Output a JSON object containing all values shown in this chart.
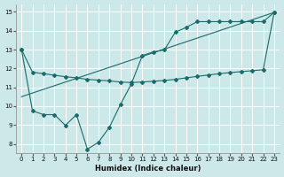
{
  "xlabel": "Humidex (Indice chaleur)",
  "background_color": "#cce8e8",
  "grid_color": "#aad4d4",
  "line_color": "#1a6b6b",
  "xlim": [
    -0.5,
    23.5
  ],
  "ylim": [
    7.5,
    15.4
  ],
  "xticks": [
    0,
    1,
    2,
    3,
    4,
    5,
    6,
    7,
    8,
    9,
    10,
    11,
    12,
    13,
    14,
    15,
    16,
    17,
    18,
    19,
    20,
    21,
    22,
    23
  ],
  "yticks": [
    8,
    9,
    10,
    11,
    12,
    13,
    14,
    15
  ],
  "line1_x": [
    0,
    1,
    2,
    3,
    4,
    5,
    6,
    7,
    8,
    9,
    10,
    11,
    12,
    13,
    14,
    15,
    16,
    17,
    18,
    19,
    20,
    21,
    22,
    23
  ],
  "line1_y": [
    13.0,
    11.8,
    11.72,
    11.64,
    11.56,
    11.5,
    11.42,
    11.38,
    11.34,
    11.28,
    11.25,
    11.28,
    11.32,
    11.36,
    11.42,
    11.5,
    11.58,
    11.65,
    11.72,
    11.78,
    11.83,
    11.88,
    11.93,
    14.97
  ],
  "line2_x": [
    0,
    1,
    2,
    3,
    4,
    5,
    6,
    7,
    8,
    9,
    10,
    11,
    12,
    13,
    14,
    15,
    16,
    17,
    18,
    19,
    20,
    21,
    22,
    23
  ],
  "line2_y": [
    13.0,
    9.75,
    9.55,
    9.55,
    8.98,
    9.55,
    7.72,
    8.08,
    8.88,
    10.08,
    11.18,
    12.68,
    12.88,
    12.98,
    13.92,
    14.18,
    14.48,
    14.48,
    14.48,
    14.48,
    14.48,
    14.48,
    14.48,
    14.97
  ],
  "line3_x": [
    0,
    23
  ],
  "line3_y": [
    10.5,
    14.97
  ]
}
